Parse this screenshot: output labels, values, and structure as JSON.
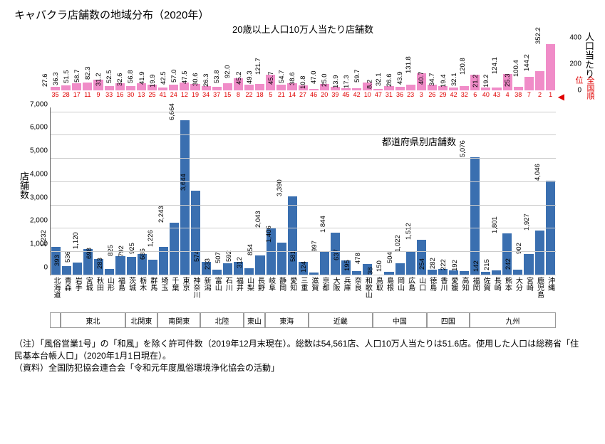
{
  "title": "キャバクラ店舗数の地域分布（2020年）",
  "top": {
    "subtitle": "20歳以上人口10万人当たり店舗数",
    "ylabel_right": "人口当たり",
    "rank_label": "全国順位",
    "ymax": 400,
    "yticks": [
      0,
      200,
      400
    ],
    "bars": [
      {
        "v": 27.6,
        "r": 35
      },
      {
        "v": 36.3,
        "r": 28
      },
      {
        "v": 51.5,
        "r": 17
      },
      {
        "v": 58.7,
        "r": 11
      },
      {
        "v": 82.3,
        "r": 9
      },
      {
        "v": 31.2,
        "r": 33
      },
      {
        "v": 52.5,
        "r": 16
      },
      {
        "v": 32.6,
        "r": 30
      },
      {
        "v": 56.8,
        "r": 13
      },
      {
        "v": 41.9,
        "r": 25
      },
      {
        "v": 19.9,
        "r": 41
      },
      {
        "v": 42.5,
        "r": 24
      },
      {
        "v": 57.0,
        "r": 12
      },
      {
        "v": 47.5,
        "r": 19
      },
      {
        "v": 30.6,
        "r": 34
      },
      {
        "v": 26.3,
        "r": 37
      },
      {
        "v": 53.8,
        "r": 15
      },
      {
        "v": 92.0,
        "r": 8
      },
      {
        "v": 45.2,
        "r": 22
      },
      {
        "v": 49.3,
        "r": 18
      },
      {
        "v": 121.7,
        "r": 5
      },
      {
        "v": 45.7,
        "r": 21
      },
      {
        "v": 54.7,
        "r": 14
      },
      {
        "v": 38.6,
        "r": 27
      },
      {
        "v": 10.8,
        "r": 46
      },
      {
        "v": 47.0,
        "r": 20
      },
      {
        "v": 25.0,
        "r": 39
      },
      {
        "v": 13.9,
        "r": 45
      },
      {
        "v": 17.3,
        "r": 42
      },
      {
        "v": 59.7,
        "r": 10
      },
      {
        "v": 8.2,
        "r": 47
      },
      {
        "v": 32.1,
        "r": 31
      },
      {
        "v": 26.6,
        "r": 36
      },
      {
        "v": 43.9,
        "r": 23
      },
      {
        "v": 131.8,
        "r": 3
      },
      {
        "v": 40.7,
        "r": 26
      },
      {
        "v": 34.7,
        "r": 29
      },
      {
        "v": 19.4,
        "r": 42
      },
      {
        "v": 32.1,
        "r": 32
      },
      {
        "v": 120.8,
        "r": 6
      },
      {
        "v": 21.2,
        "r": 40
      },
      {
        "v": 19.2,
        "r": 43
      },
      {
        "v": 124.1,
        "r": 4
      },
      {
        "v": 25.3,
        "r": 38
      },
      {
        "v": 100.4,
        "r": 7
      },
      {
        "v": 144.2,
        "r": 2
      },
      {
        "v": 352.2,
        "r": 1
      }
    ]
  },
  "bot": {
    "subtitle": "都道府県別店舗数",
    "ylabel_left": "店舗数",
    "ymax": 7200,
    "yticks": [
      0,
      1000,
      2000,
      3000,
      4000,
      5000,
      6000,
      7000
    ],
    "bars": [
      {
        "v": 1232,
        "p": "北海道"
      },
      {
        "v": 393,
        "p": "青森"
      },
      {
        "v": 536,
        "p": "岩手"
      },
      {
        "v": 1120,
        "p": "宮城"
      },
      {
        "v": 698,
        "p": "秋田"
      },
      {
        "v": 283,
        "p": "山形"
      },
      {
        "v": 825,
        "p": "福島"
      },
      {
        "v": 792,
        "p": "茨城"
      },
      {
        "v": 925,
        "p": "栃木"
      },
      {
        "v": 686,
        "p": "群馬"
      },
      {
        "v": 1226,
        "p": "埼玉"
      },
      {
        "v": 2243,
        "p": "千葉"
      },
      {
        "v": 6664,
        "p": "東京"
      },
      {
        "v": 3644,
        "p": "神奈川"
      },
      {
        "v": 574,
        "p": "新潟"
      },
      {
        "v": 233,
        "p": "富山"
      },
      {
        "v": 507,
        "p": "石川"
      },
      {
        "v": 592,
        "p": "福井"
      },
      {
        "v": 312,
        "p": "山梨"
      },
      {
        "v": 854,
        "p": "長野"
      },
      {
        "v": 2043,
        "p": "岐阜"
      },
      {
        "v": 1406,
        "p": "静岡"
      },
      {
        "v": 3390,
        "p": "愛知"
      },
      {
        "v": 581,
        "p": "三重"
      },
      {
        "v": 124,
        "p": "滋賀"
      },
      {
        "v": 997,
        "p": "京都"
      },
      {
        "v": 1844,
        "p": "大阪"
      },
      {
        "v": 637,
        "p": "兵庫"
      },
      {
        "v": 195,
        "p": "奈良"
      },
      {
        "v": 478,
        "p": "和歌山"
      },
      {
        "v": 38,
        "p": "鳥取"
      },
      {
        "v": 150,
        "p": "島根"
      },
      {
        "v": 504,
        "p": "岡山"
      },
      {
        "v": 1022,
        "p": "広島"
      },
      {
        "v": 1512,
        "p": "山口"
      },
      {
        "v": 254,
        "p": "徳島"
      },
      {
        "v": 282,
        "p": "香川"
      },
      {
        "v": 222,
        "p": "愛媛"
      },
      {
        "v": 192,
        "p": "高知"
      },
      {
        "v": 5076,
        "p": "福岡"
      },
      {
        "v": 142,
        "p": "佐賀"
      },
      {
        "v": 215,
        "p": "長崎"
      },
      {
        "v": 1801,
        "p": "熊本"
      },
      {
        "v": 242,
        "p": "大分"
      },
      {
        "v": 902,
        "p": "宮崎"
      },
      {
        "v": 1927,
        "p": "鹿児島"
      },
      {
        "v": 4046,
        "p": "沖縄"
      }
    ],
    "regions": [
      {
        "n": "",
        "c": 1
      },
      {
        "n": "東北",
        "c": 6
      },
      {
        "n": "北関東",
        "c": 3
      },
      {
        "n": "南関東",
        "c": 4
      },
      {
        "n": "北陸",
        "c": 4
      },
      {
        "n": "東山",
        "c": 2
      },
      {
        "n": "東海",
        "c": 4
      },
      {
        "n": "近畿",
        "c": 6
      },
      {
        "n": "中国",
        "c": 5
      },
      {
        "n": "四国",
        "c": 4
      },
      {
        "n": "九州",
        "c": 8
      }
    ]
  },
  "notes": {
    "n1": "（注）「風俗営業1号」の「和風」を除く許可件数（2019年12月末現在）。総数は54,561店、人口10万人当たりは51.6店。使用した人口は総務省「住民基本台帳人口」（2020年1月1日現在）。",
    "n2": "（資料）全国防犯協会連合会「令和元年度風俗環境浄化協会の活動」"
  }
}
